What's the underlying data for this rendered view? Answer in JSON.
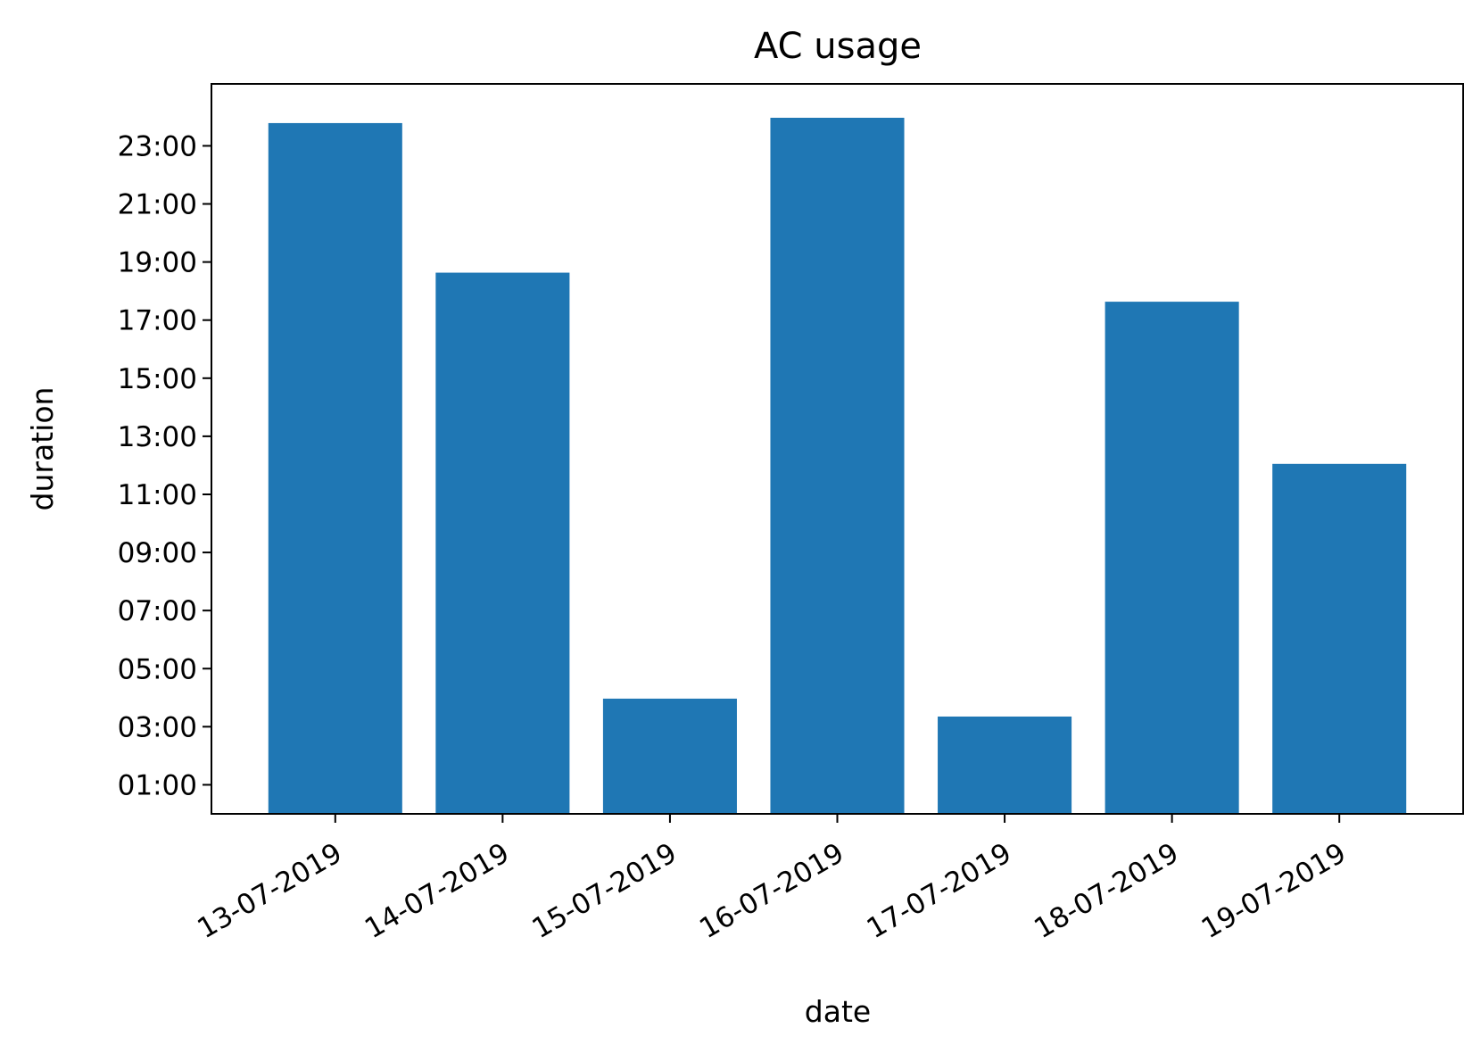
{
  "chart_data": {
    "type": "bar",
    "title": "AC usage",
    "xlabel": "date",
    "ylabel": "duration",
    "categories": [
      "13-07-2019",
      "14-07-2019",
      "15-07-2019",
      "16-07-2019",
      "17-07-2019",
      "18-07-2019",
      "19-07-2019"
    ],
    "values": [
      "23:47",
      "18:38",
      "03:58",
      "23:58",
      "03:21",
      "17:38",
      "12:03"
    ],
    "y_ticks": [
      "01:00",
      "03:00",
      "05:00",
      "07:00",
      "09:00",
      "11:00",
      "13:00",
      "15:00",
      "17:00",
      "19:00",
      "21:00",
      "23:00"
    ],
    "ylim": [
      "00:00",
      "25:08"
    ],
    "bar_color": "#1f77b4",
    "grid": false,
    "legend": false
  }
}
